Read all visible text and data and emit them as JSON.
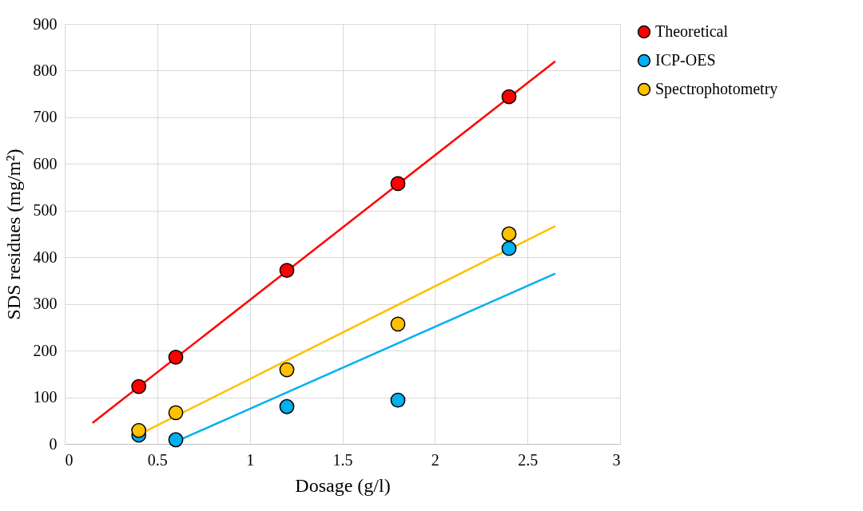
{
  "chart_data": {
    "type": "scatter",
    "xlabel": "Dosage (g/l)",
    "ylabel": "SDS residues (mg/m²)",
    "xlim": [
      0,
      3
    ],
    "xticks": [
      0,
      0.5,
      1,
      1.5,
      2,
      2.5,
      3
    ],
    "ylim": [
      0,
      900
    ],
    "yticks": [
      0,
      100,
      200,
      300,
      400,
      500,
      600,
      700,
      800,
      900
    ],
    "grid": true,
    "legend": "right",
    "marker": "circle",
    "x": [
      0.4,
      0.6,
      1.2,
      1.8,
      2.4
    ],
    "series": [
      {
        "name": "Theoretical",
        "color": "#ff0000",
        "values": [
          123,
          186,
          372,
          558,
          744
        ]
      },
      {
        "name": "ICP-OES",
        "color": "#00b0f0",
        "values": [
          19,
          9,
          80,
          94,
          419
        ]
      },
      {
        "name": "Spectrophotometry",
        "color": "#ffc000",
        "values": [
          29,
          67,
          159,
          257,
          450
        ]
      },
      {
        "type": "line",
        "color": "#ff0000",
        "marker": "none",
        "line_style": "solid",
        "x": [
          0.15,
          2.65
        ],
        "values": [
          45,
          820
        ]
      },
      {
        "type": "line",
        "color": "#00b0f0",
        "marker": "none",
        "line_style": "solid",
        "x": [
          0.6,
          2.65
        ],
        "values": [
          5,
          365
        ]
      },
      {
        "type": "line",
        "color": "#ffc000",
        "marker": "none",
        "line_style": "solid",
        "x": [
          0.4,
          2.65
        ],
        "values": [
          20,
          467
        ]
      }
    ]
  }
}
